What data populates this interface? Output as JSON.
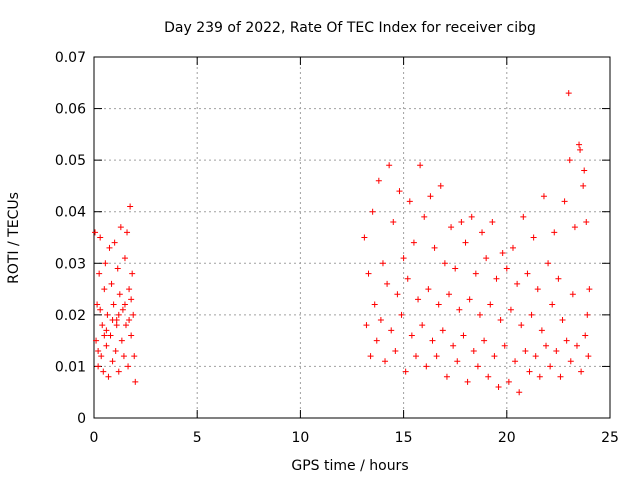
{
  "chart_data": {
    "type": "scatter",
    "title": "Day 239 of 2022, Rate Of TEC Index for receiver cibg",
    "xlabel": "GPS time / hours",
    "ylabel": "ROTI / TECUs",
    "xlim": [
      0,
      25
    ],
    "ylim": [
      0,
      0.07
    ],
    "x_ticks": [
      0,
      5,
      10,
      15,
      20,
      25
    ],
    "y_ticks": [
      0,
      0.01,
      0.02,
      0.03,
      0.04,
      0.05,
      0.06,
      0.07
    ],
    "x_tick_labels": [
      "0",
      "5",
      "10",
      "15",
      "20",
      "25"
    ],
    "y_tick_labels": [
      "0",
      "0.01",
      "0.02",
      "0.03",
      "0.04",
      "0.05",
      "0.06",
      "0.07"
    ],
    "grid": true,
    "marker": "+",
    "marker_color": "#ff0000",
    "series": [
      {
        "points": [
          [
            0.05,
            0.036
          ],
          [
            0.1,
            0.015
          ],
          [
            0.15,
            0.022
          ],
          [
            0.2,
            0.01
          ],
          [
            0.25,
            0.028
          ],
          [
            0.3,
            0.035
          ],
          [
            0.35,
            0.012
          ],
          [
            0.4,
            0.018
          ],
          [
            0.45,
            0.009
          ],
          [
            0.5,
            0.025
          ],
          [
            0.55,
            0.03
          ],
          [
            0.6,
            0.014
          ],
          [
            0.65,
            0.02
          ],
          [
            0.7,
            0.008
          ],
          [
            0.75,
            0.033
          ],
          [
            0.8,
            0.016
          ],
          [
            0.85,
            0.026
          ],
          [
            0.9,
            0.011
          ],
          [
            0.95,
            0.022
          ],
          [
            1.0,
            0.034
          ],
          [
            1.05,
            0.013
          ],
          [
            1.1,
            0.019
          ],
          [
            1.15,
            0.029
          ],
          [
            1.2,
            0.009
          ],
          [
            1.25,
            0.024
          ],
          [
            1.3,
            0.037
          ],
          [
            1.35,
            0.015
          ],
          [
            1.4,
            0.021
          ],
          [
            1.45,
            0.012
          ],
          [
            1.5,
            0.031
          ],
          [
            1.55,
            0.018
          ],
          [
            1.6,
            0.036
          ],
          [
            1.65,
            0.01
          ],
          [
            1.7,
            0.025
          ],
          [
            1.75,
            0.041
          ],
          [
            1.8,
            0.016
          ],
          [
            1.85,
            0.028
          ],
          [
            1.9,
            0.02
          ],
          [
            1.95,
            0.012
          ],
          [
            2.0,
            0.007
          ],
          [
            0.3,
            0.021
          ],
          [
            0.6,
            0.017
          ],
          [
            0.9,
            0.019
          ],
          [
            1.2,
            0.02
          ],
          [
            1.5,
            0.022
          ],
          [
            1.8,
            0.023
          ],
          [
            0.5,
            0.016
          ],
          [
            1.1,
            0.018
          ],
          [
            1.7,
            0.019
          ],
          [
            0.2,
            0.013
          ],
          [
            13.1,
            0.035
          ],
          [
            13.2,
            0.018
          ],
          [
            13.3,
            0.028
          ],
          [
            13.4,
            0.012
          ],
          [
            13.5,
            0.04
          ],
          [
            13.6,
            0.022
          ],
          [
            13.7,
            0.015
          ],
          [
            13.8,
            0.046
          ],
          [
            13.9,
            0.019
          ],
          [
            14.0,
            0.03
          ],
          [
            14.1,
            0.011
          ],
          [
            14.2,
            0.026
          ],
          [
            14.3,
            0.049
          ],
          [
            14.4,
            0.017
          ],
          [
            14.5,
            0.038
          ],
          [
            14.6,
            0.013
          ],
          [
            14.7,
            0.024
          ],
          [
            14.8,
            0.044
          ],
          [
            14.9,
            0.02
          ],
          [
            15.0,
            0.031
          ],
          [
            15.1,
            0.009
          ],
          [
            15.2,
            0.027
          ],
          [
            15.3,
            0.042
          ],
          [
            15.4,
            0.016
          ],
          [
            15.5,
            0.034
          ],
          [
            15.6,
            0.012
          ],
          [
            15.7,
            0.023
          ],
          [
            15.8,
            0.049
          ],
          [
            15.9,
            0.018
          ],
          [
            16.0,
            0.039
          ],
          [
            16.1,
            0.01
          ],
          [
            16.2,
            0.025
          ],
          [
            16.3,
            0.043
          ],
          [
            16.4,
            0.015
          ],
          [
            16.5,
            0.033
          ],
          [
            16.6,
            0.012
          ],
          [
            16.7,
            0.022
          ],
          [
            16.8,
            0.045
          ],
          [
            16.9,
            0.017
          ],
          [
            17.0,
            0.03
          ],
          [
            17.1,
            0.008
          ],
          [
            17.2,
            0.024
          ],
          [
            17.3,
            0.037
          ],
          [
            17.4,
            0.014
          ],
          [
            17.5,
            0.029
          ],
          [
            17.6,
            0.011
          ],
          [
            17.7,
            0.021
          ],
          [
            17.8,
            0.038
          ],
          [
            17.9,
            0.016
          ],
          [
            18.0,
            0.034
          ],
          [
            18.1,
            0.007
          ],
          [
            18.2,
            0.023
          ],
          [
            18.3,
            0.039
          ],
          [
            18.4,
            0.013
          ],
          [
            18.5,
            0.028
          ],
          [
            18.6,
            0.01
          ],
          [
            18.7,
            0.02
          ],
          [
            18.8,
            0.036
          ],
          [
            18.9,
            0.015
          ],
          [
            19.0,
            0.031
          ],
          [
            19.1,
            0.008
          ],
          [
            19.2,
            0.022
          ],
          [
            19.3,
            0.038
          ],
          [
            19.4,
            0.012
          ],
          [
            19.5,
            0.027
          ],
          [
            19.6,
            0.006
          ],
          [
            19.7,
            0.019
          ],
          [
            19.8,
            0.032
          ],
          [
            19.9,
            0.014
          ],
          [
            20.0,
            0.029
          ],
          [
            20.1,
            0.007
          ],
          [
            20.2,
            0.021
          ],
          [
            20.3,
            0.033
          ],
          [
            20.4,
            0.011
          ],
          [
            20.5,
            0.026
          ],
          [
            20.6,
            0.005
          ],
          [
            20.7,
            0.018
          ],
          [
            20.8,
            0.039
          ],
          [
            20.9,
            0.013
          ],
          [
            21.0,
            0.028
          ],
          [
            21.1,
            0.009
          ],
          [
            21.2,
            0.02
          ],
          [
            21.3,
            0.035
          ],
          [
            21.4,
            0.012
          ],
          [
            21.5,
            0.025
          ],
          [
            21.6,
            0.008
          ],
          [
            21.7,
            0.017
          ],
          [
            21.8,
            0.043
          ],
          [
            21.9,
            0.014
          ],
          [
            22.0,
            0.03
          ],
          [
            22.1,
            0.01
          ],
          [
            22.2,
            0.022
          ],
          [
            22.3,
            0.036
          ],
          [
            22.4,
            0.013
          ],
          [
            22.5,
            0.027
          ],
          [
            22.6,
            0.008
          ],
          [
            22.7,
            0.019
          ],
          [
            22.8,
            0.042
          ],
          [
            22.9,
            0.015
          ],
          [
            23.0,
            0.063
          ],
          [
            23.05,
            0.05
          ],
          [
            23.1,
            0.011
          ],
          [
            23.2,
            0.024
          ],
          [
            23.3,
            0.037
          ],
          [
            23.4,
            0.014
          ],
          [
            23.5,
            0.053
          ],
          [
            23.55,
            0.052
          ],
          [
            23.6,
            0.009
          ],
          [
            23.7,
            0.045
          ],
          [
            23.75,
            0.048
          ],
          [
            23.8,
            0.016
          ],
          [
            23.85,
            0.038
          ],
          [
            23.9,
            0.02
          ],
          [
            23.95,
            0.012
          ],
          [
            24.0,
            0.025
          ]
        ]
      }
    ]
  }
}
